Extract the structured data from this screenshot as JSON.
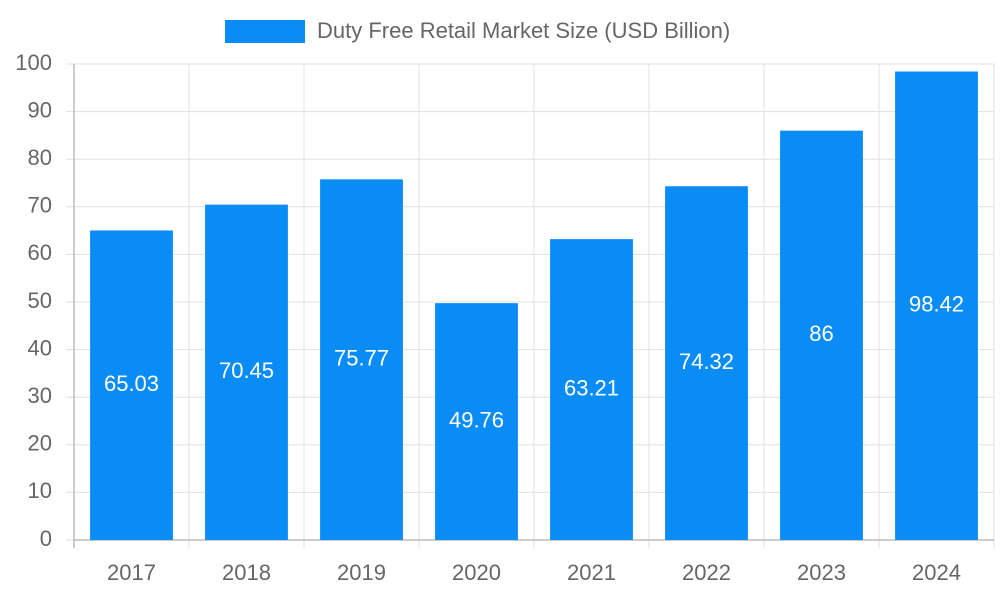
{
  "chart_data": {
    "type": "bar",
    "legend": "Duty Free Retail Market Size (USD Billion)",
    "categories": [
      "2017",
      "2018",
      "2019",
      "2020",
      "2021",
      "2022",
      "2023",
      "2024"
    ],
    "values": [
      65.03,
      70.45,
      75.77,
      49.76,
      63.21,
      74.32,
      86,
      98.42
    ],
    "color": "#0a8cf7",
    "ylim": [
      0,
      100
    ],
    "yticks": [
      0,
      10,
      20,
      30,
      40,
      50,
      60,
      70,
      80,
      90,
      100
    ],
    "grid": true,
    "legend_position": "top"
  }
}
